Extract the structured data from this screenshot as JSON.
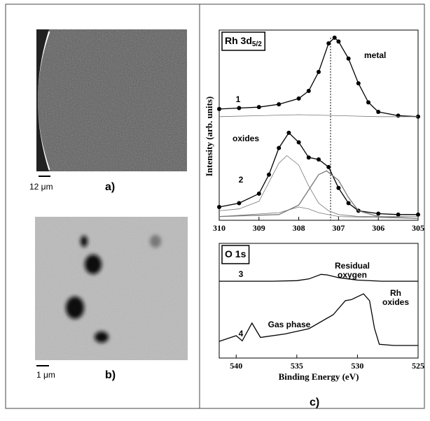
{
  "figure": {
    "panel_labels": [
      "a)",
      "b)",
      "c)"
    ],
    "scale_bars": [
      "12 μm",
      "1 μm"
    ]
  },
  "chart_data": [
    {
      "type": "line",
      "title": "Rh 3d",
      "title_subscript": "5/2",
      "ylabel": "Intensity (arb. units)",
      "xlim": [
        310,
        305
      ],
      "xticks": [
        310,
        309,
        308,
        307,
        306,
        305
      ],
      "ylim": [
        0,
        100
      ],
      "vline": 307.2,
      "annotations": [
        "metal",
        "oxides",
        "1",
        "2"
      ],
      "series": [
        {
          "color": "#000",
          "markers": true,
          "x": [
            310,
            309.5,
            309,
            308.5,
            308,
            307.75,
            307.5,
            307.25,
            307.1,
            307,
            306.75,
            306.5,
            306.25,
            306,
            305.5,
            305
          ],
          "values": [
            58.5,
            59,
            59.5,
            61,
            64,
            68,
            78,
            93,
            96,
            94,
            85,
            72,
            62,
            57,
            55,
            54.5
          ]
        },
        {
          "color": "#777",
          "markers": false,
          "x": [
            310,
            309,
            308,
            307,
            306,
            305
          ],
          "values": [
            54.5,
            55,
            55.5,
            55,
            54.5,
            54.5
          ]
        },
        {
          "color": "#000",
          "markers": true,
          "x": [
            310,
            309.5,
            309,
            308.75,
            308.5,
            308.25,
            308,
            307.75,
            307.5,
            307.25,
            307,
            306.75,
            306.5,
            306,
            305.5,
            305
          ],
          "values": [
            7,
            9,
            14,
            24,
            38,
            46,
            41,
            33,
            32,
            28,
            17,
            9,
            5,
            3.5,
            3,
            3
          ]
        },
        {
          "color": "#777",
          "markers": false,
          "x": [
            310,
            309.5,
            309,
            308.75,
            308.5,
            308.3,
            308,
            307.75,
            307.5,
            307.25,
            307,
            306.5,
            305
          ],
          "values": [
            5,
            6,
            10,
            20,
            30,
            34,
            29,
            18,
            9,
            5,
            3,
            2,
            2
          ]
        },
        {
          "color": "#777",
          "markers": false,
          "x": [
            310,
            308.5,
            308,
            307.75,
            307.5,
            307.3,
            307,
            306.75,
            306.5,
            306,
            305
          ],
          "values": [
            2,
            3,
            8,
            16,
            24,
            26,
            21,
            12,
            5,
            2,
            1
          ]
        },
        {
          "color": "#777",
          "markers": false,
          "x": [
            310,
            308.5,
            308,
            307.75,
            307.5,
            307,
            305
          ],
          "values": [
            2,
            4,
            7,
            6,
            4,
            2,
            1
          ]
        }
      ]
    },
    {
      "type": "line",
      "title": "O 1s",
      "xlabel": "Binding Energy (eV)",
      "xlim": [
        541.4,
        525
      ],
      "xticks": [
        540,
        535,
        530,
        525
      ],
      "ylim": [
        0,
        100
      ],
      "annotations": [
        "Residual",
        "oxygen",
        "Gas phase",
        "Rh",
        "oxides",
        "3",
        "4"
      ],
      "series": [
        {
          "color": "#000",
          "markers": false,
          "x": [
            541.4,
            537,
            535,
            534,
            533,
            532.5,
            531.5,
            530,
            528,
            525
          ],
          "values": [
            67,
            67,
            67.5,
            69,
            73,
            72.5,
            70,
            68,
            67,
            67
          ]
        },
        {
          "color": "#000",
          "markers": false,
          "x": [
            541.4,
            540,
            539.5,
            538.7,
            538,
            536,
            534,
            532,
            531,
            530.5,
            529.5,
            529,
            528.6,
            528.2,
            527,
            525
          ],
          "values": [
            14.6,
            19.5,
            15,
            30.5,
            18,
            21,
            25.6,
            37.8,
            50,
            51,
            56,
            50,
            26,
            12,
            11,
            11
          ]
        }
      ]
    }
  ]
}
